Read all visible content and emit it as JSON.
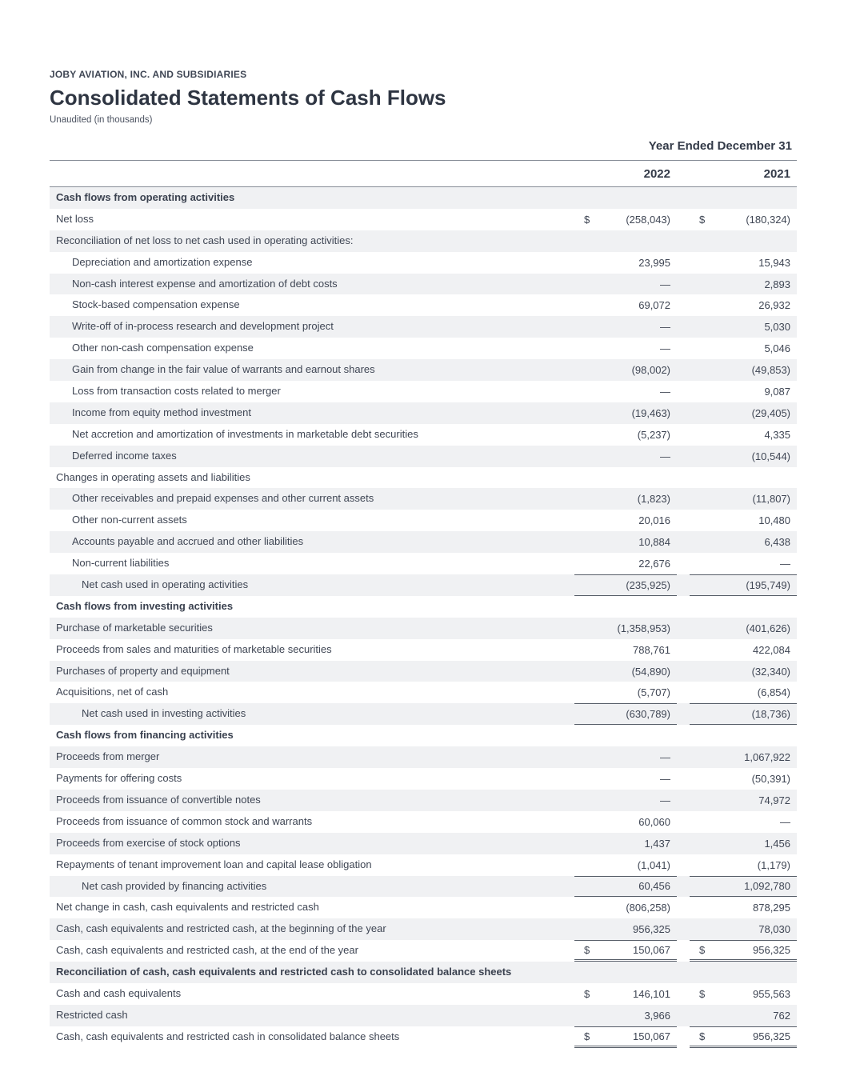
{
  "header": {
    "company": "JOBY AVIATION, INC. AND SUBSIDIARIES",
    "title": "Consolidated Statements of Cash Flows",
    "subtitle": "Unaudited (in thousands)"
  },
  "colors": {
    "row_shade": "#f0f1f3",
    "text": "#3f4654",
    "rule": "#565d68"
  },
  "statement": {
    "period_header": "Year Ended December 31",
    "columns": [
      "2022",
      "2021"
    ],
    "currency_symbol": "$",
    "rows": [
      {
        "type": "section",
        "indent": 0,
        "label": "Cash flows from operating activities"
      },
      {
        "type": "item",
        "indent": 0,
        "dollar": true,
        "label": "Net loss",
        "values": [
          "(258,043)",
          "(180,324)"
        ]
      },
      {
        "type": "label",
        "indent": 0,
        "label": "Reconciliation of net loss to net cash used in operating activities:"
      },
      {
        "type": "item",
        "indent": 1,
        "label": "Depreciation and amortization expense",
        "values": [
          "23,995",
          "15,943"
        ]
      },
      {
        "type": "item",
        "indent": 1,
        "label": "Non-cash interest expense and amortization of debt costs",
        "values": [
          "—",
          "2,893"
        ]
      },
      {
        "type": "item",
        "indent": 1,
        "label": "Stock-based compensation expense",
        "values": [
          "69,072",
          "26,932"
        ]
      },
      {
        "type": "item",
        "indent": 1,
        "label": "Write-off of in-process research and development project",
        "values": [
          "—",
          "5,030"
        ]
      },
      {
        "type": "item",
        "indent": 1,
        "label": "Other non-cash compensation expense",
        "values": [
          "—",
          "5,046"
        ]
      },
      {
        "type": "item",
        "indent": 1,
        "label": "Gain from change in the fair value of warrants and earnout shares",
        "values": [
          "(98,002)",
          "(49,853)"
        ]
      },
      {
        "type": "item",
        "indent": 1,
        "label": "Loss from transaction costs related to merger",
        "values": [
          "—",
          "9,087"
        ]
      },
      {
        "type": "item",
        "indent": 1,
        "label": "Income from equity method investment",
        "values": [
          "(19,463)",
          "(29,405)"
        ]
      },
      {
        "type": "item",
        "indent": 1,
        "label": "Net accretion and amortization of investments in marketable debt securities",
        "values": [
          "(5,237)",
          "4,335"
        ]
      },
      {
        "type": "item",
        "indent": 1,
        "label": "Deferred income taxes",
        "values": [
          "—",
          "(10,544)"
        ]
      },
      {
        "type": "label",
        "indent": 0,
        "label": "Changes in operating assets and liabilities"
      },
      {
        "type": "item",
        "indent": 1,
        "label": "Other receivables and prepaid expenses and other current assets",
        "values": [
          "(1,823)",
          "(11,807)"
        ]
      },
      {
        "type": "item",
        "indent": 1,
        "label": "Other non-current assets",
        "values": [
          "20,016",
          "10,480"
        ]
      },
      {
        "type": "item",
        "indent": 1,
        "label": "Accounts payable and accrued and other liabilities",
        "values": [
          "10,884",
          "6,438"
        ]
      },
      {
        "type": "item",
        "indent": 1,
        "label": "Non-current liabilities",
        "values": [
          "22,676",
          "—"
        ]
      },
      {
        "type": "subtotal",
        "indent": 2,
        "label": "Net cash used in operating activities",
        "values": [
          "(235,925)",
          "(195,749)"
        ]
      },
      {
        "type": "section",
        "indent": 0,
        "label": "Cash flows from investing activities"
      },
      {
        "type": "item",
        "indent": 0,
        "label": "Purchase of marketable securities",
        "values": [
          "(1,358,953)",
          "(401,626)"
        ]
      },
      {
        "type": "item",
        "indent": 0,
        "label": "Proceeds from sales and maturities of marketable securities",
        "values": [
          "788,761",
          "422,084"
        ]
      },
      {
        "type": "item",
        "indent": 0,
        "label": "Purchases of property and equipment",
        "values": [
          "(54,890)",
          "(32,340)"
        ]
      },
      {
        "type": "item",
        "indent": 0,
        "label": "Acquisitions, net of cash",
        "values": [
          "(5,707)",
          "(6,854)"
        ]
      },
      {
        "type": "subtotal",
        "indent": 2,
        "label": "Net cash used in investing activities",
        "values": [
          "(630,789)",
          "(18,736)"
        ]
      },
      {
        "type": "section",
        "indent": 0,
        "label": "Cash flows from financing activities"
      },
      {
        "type": "item",
        "indent": 0,
        "label": "Proceeds from merger",
        "values": [
          "—",
          "1,067,922"
        ]
      },
      {
        "type": "item",
        "indent": 0,
        "label": "Payments for offering costs",
        "values": [
          "—",
          "(50,391)"
        ]
      },
      {
        "type": "item",
        "indent": 0,
        "label": "Proceeds from issuance of convertible notes",
        "values": [
          "—",
          "74,972"
        ]
      },
      {
        "type": "item",
        "indent": 0,
        "label": "Proceeds from issuance of common stock and warrants",
        "values": [
          "60,060",
          "—"
        ]
      },
      {
        "type": "item",
        "indent": 0,
        "label": "Proceeds from exercise of stock options",
        "values": [
          "1,437",
          "1,456"
        ]
      },
      {
        "type": "item",
        "indent": 0,
        "label": "Repayments of tenant improvement loan and capital lease obligation",
        "values": [
          "(1,041)",
          "(1,179)"
        ]
      },
      {
        "type": "subtotal",
        "indent": 2,
        "label": "Net cash provided by financing activities",
        "values": [
          "60,456",
          "1,092,780"
        ]
      },
      {
        "type": "item",
        "indent": 0,
        "label": "Net change in cash, cash equivalents and restricted cash",
        "values": [
          "(806,258)",
          "878,295"
        ]
      },
      {
        "type": "item",
        "indent": 0,
        "label": "Cash, cash equivalents and restricted cash, at the beginning of the year",
        "values": [
          "956,325",
          "78,030"
        ]
      },
      {
        "type": "total",
        "indent": 0,
        "dollar": true,
        "label": "Cash, cash equivalents and restricted cash, at the end of the year",
        "values": [
          "150,067",
          "956,325"
        ]
      },
      {
        "type": "section",
        "indent": 0,
        "label": "Reconciliation of cash, cash equivalents and restricted cash to consolidated balance sheets"
      },
      {
        "type": "item",
        "indent": 0,
        "dollar": true,
        "label": "Cash and cash equivalents",
        "values": [
          "146,101",
          "955,563"
        ]
      },
      {
        "type": "item",
        "indent": 0,
        "label": "Restricted cash",
        "values": [
          "3,966",
          "762"
        ]
      },
      {
        "type": "total",
        "indent": 0,
        "dollar": true,
        "label": "Cash, cash equivalents and restricted cash in consolidated balance sheets",
        "values": [
          "150,067",
          "956,325"
        ]
      }
    ]
  }
}
